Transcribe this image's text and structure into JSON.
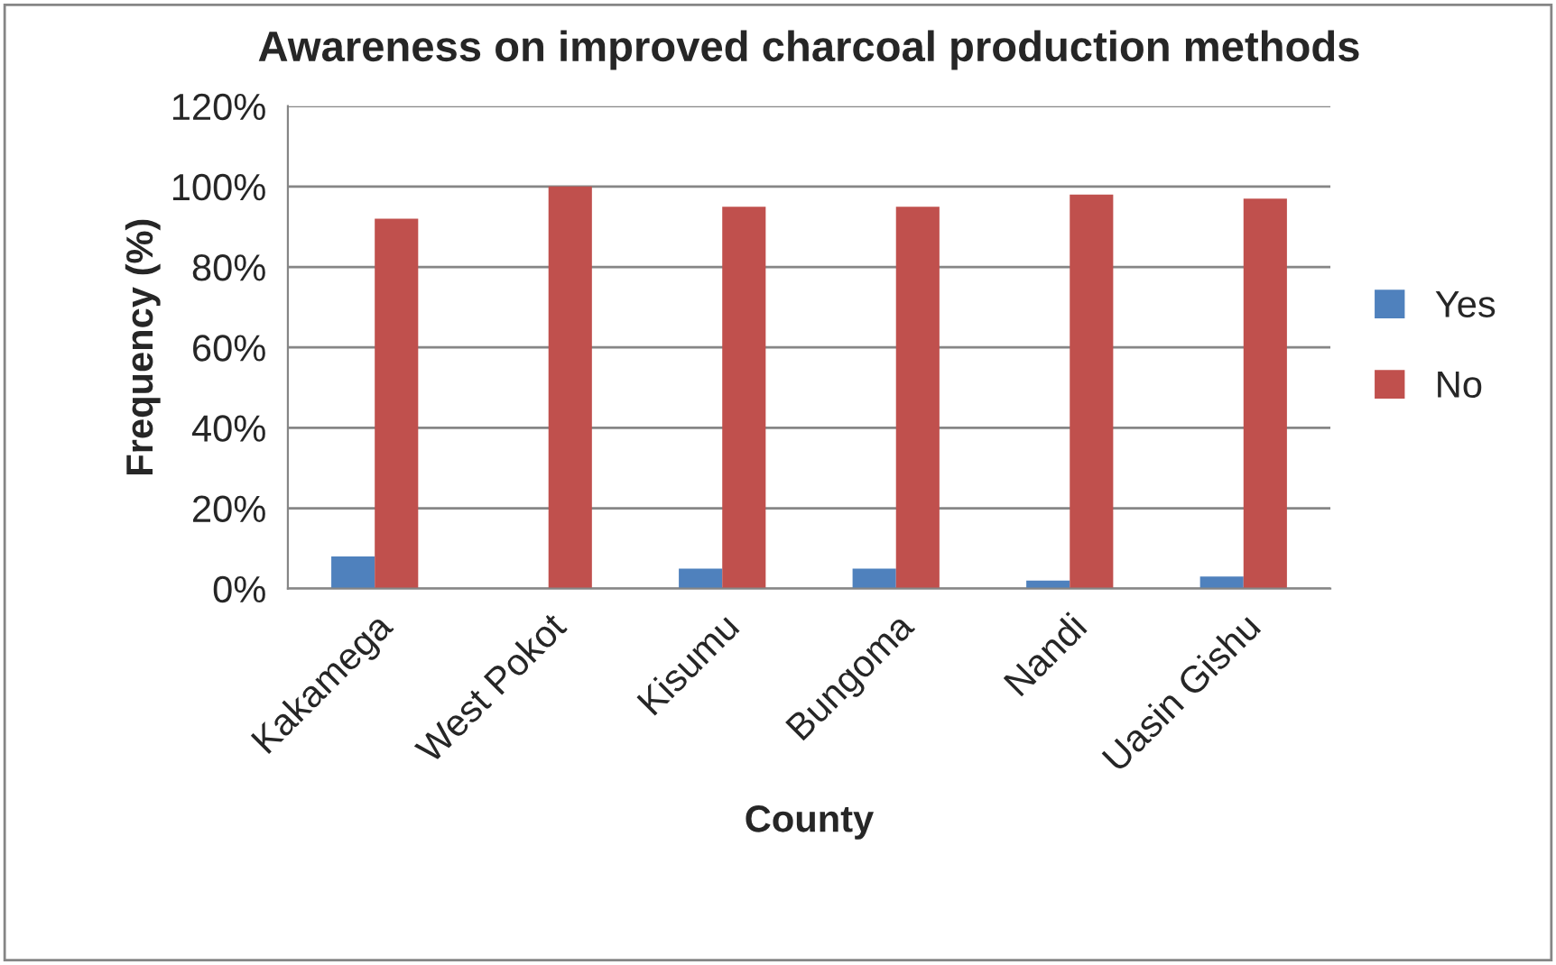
{
  "chart_data": {
    "type": "bar",
    "title": "Awareness on improved charcoal production methods",
    "xlabel": "County",
    "ylabel": "Frequency (%)",
    "categories": [
      "Kakamega",
      "West Pokot",
      "Kisumu",
      "Bungoma",
      "Nandi",
      "Uasin Gishu"
    ],
    "series": [
      {
        "name": "Yes",
        "color": "#4f81bd",
        "values": [
          8,
          null,
          5,
          5,
          2,
          3
        ]
      },
      {
        "name": "No",
        "color": "#c0504d",
        "values": [
          92,
          100,
          95,
          95,
          98,
          97
        ]
      }
    ],
    "ylim": [
      0,
      120
    ],
    "yticks": [
      {
        "value": 0,
        "label": "0%"
      },
      {
        "value": 20,
        "label": "20%"
      },
      {
        "value": 40,
        "label": "40%"
      },
      {
        "value": 60,
        "label": "60%"
      },
      {
        "value": 80,
        "label": "80%"
      },
      {
        "value": 100,
        "label": "100%"
      },
      {
        "value": 120,
        "label": "120%"
      }
    ],
    "grid": "y",
    "legend": "right"
  }
}
